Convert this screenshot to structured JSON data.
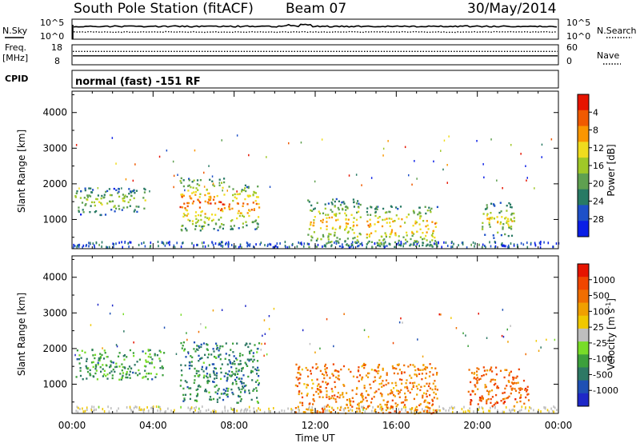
{
  "header": {
    "station": "South Pole Station (fitACF)",
    "beam": "Beam 07",
    "date": "30/May/2014"
  },
  "status_panels": {
    "nsky_label": "N.Sky",
    "nsearch_label": "N.Search",
    "freq_label_1": "Freq.",
    "freq_label_2": "[MHz]",
    "nave_label": "Nave",
    "cpid_label": "CPID",
    "cpid_text": "normal (fast) -151 RF",
    "noise_ticks_left": [
      "10^5",
      "10^0"
    ],
    "noise_ticks_right": [
      "10^5",
      "10^0"
    ],
    "freq_ticks": [
      "18",
      "8"
    ],
    "nave_ticks": [
      "60",
      "0"
    ],
    "freq_value_mhz": 12.5,
    "nave_value": 40
  },
  "chart_data": [
    {
      "type": "heatmap",
      "name": "power",
      "xlabel": "",
      "ylabel": "Slant Range [km]",
      "x_ticks": [
        "00:00",
        "04:00",
        "08:00",
        "12:00",
        "16:00",
        "20:00",
        "00:00"
      ],
      "x_range_hours": [
        0,
        24
      ],
      "y_ticks": [
        1000,
        2000,
        3000,
        4000
      ],
      "ylim": [
        180,
        4600
      ],
      "colorbar_label": "Power [dB]",
      "colorbar_ticks": [
        "4",
        "8",
        "12",
        "16",
        "20",
        "24",
        "28"
      ],
      "colorbar_colors": [
        "#0a1ee6",
        "#1e50c8",
        "#287a64",
        "#5fa050",
        "#a0c828",
        "#f0dc1e",
        "#fa9600",
        "#f05a00",
        "#e61400"
      ],
      "regions": [
        {
          "t0": 0.1,
          "t1": 1.7,
          "r0": 1150,
          "r1": 1900,
          "level": 0.55
        },
        {
          "t0": 1.8,
          "t1": 3.6,
          "r0": 1200,
          "r1": 1900,
          "level": 0.5
        },
        {
          "t0": 5.3,
          "t1": 7.5,
          "r0": 700,
          "r1": 2200,
          "level": 0.85
        },
        {
          "t0": 7.7,
          "t1": 9.2,
          "r0": 750,
          "r1": 2000,
          "level": 0.8
        },
        {
          "t0": 11.6,
          "t1": 14.2,
          "r0": 250,
          "r1": 1600,
          "level": 0.7
        },
        {
          "t0": 14.5,
          "t1": 18.0,
          "r0": 250,
          "r1": 1400,
          "level": 0.75
        },
        {
          "t0": 20.2,
          "t1": 21.8,
          "r0": 500,
          "r1": 1500,
          "level": 0.6
        }
      ]
    },
    {
      "type": "heatmap",
      "name": "velocity",
      "xlabel": "Time UT",
      "ylabel": "Slant Range [km]",
      "x_ticks": [
        "00:00",
        "04:00",
        "08:00",
        "12:00",
        "16:00",
        "20:00",
        "00:00"
      ],
      "x_range_hours": [
        0,
        24
      ],
      "y_ticks": [
        1000,
        2000,
        3000,
        4000
      ],
      "ylim": [
        180,
        4600
      ],
      "colorbar_label": "Velocity [m s",
      "colorbar_label_sup": "-1",
      "colorbar_label_end": "]",
      "colorbar_ticks": [
        "1000",
        "500",
        "100",
        "25",
        "-25",
        "-100",
        "-500",
        "-1000"
      ],
      "colorbar_colors": [
        "#1e28c8",
        "#1e50b4",
        "#2d7864",
        "#3ca03c",
        "#78dc28",
        "#bebebe",
        "#f0c800",
        "#f0a000",
        "#f06e00",
        "#f04600",
        "#e61400"
      ],
      "regions": [
        {
          "t0": 0.1,
          "t1": 4.5,
          "r0": 1150,
          "r1": 2000,
          "level": 0.3
        },
        {
          "t0": 5.3,
          "t1": 9.2,
          "r0": 500,
          "r1": 2200,
          "level": 0.25
        },
        {
          "t0": 11.0,
          "t1": 18.0,
          "r0": 200,
          "r1": 1600,
          "level": 0.75
        },
        {
          "t0": 19.5,
          "t1": 22.5,
          "r0": 400,
          "r1": 1500,
          "level": 0.8
        }
      ]
    }
  ]
}
